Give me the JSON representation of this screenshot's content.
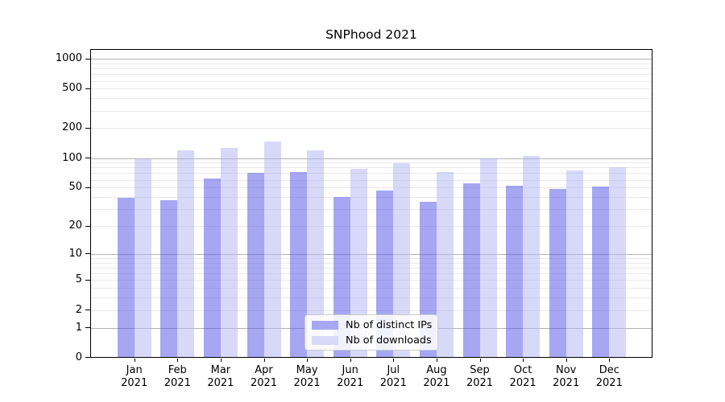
{
  "chart_data": {
    "type": "bar",
    "title": "SNPhood 2021",
    "year_line": "2021",
    "months": [
      "Jan",
      "Feb",
      "Mar",
      "Apr",
      "May",
      "Jun",
      "Jul",
      "Aug",
      "Sep",
      "Oct",
      "Nov",
      "Dec"
    ],
    "series": [
      {
        "name": "Nb of distinct IPs",
        "legend_color": "#a6a6f2",
        "fill": "rgba(77,77,229,0.5)",
        "values": [
          39,
          37,
          62,
          70,
          72,
          40,
          47,
          36,
          55,
          52,
          48,
          51
        ]
      },
      {
        "name": "Nb of downloads",
        "legend_color": "#d8d8f8",
        "fill": "rgba(177,177,241,0.5)",
        "values": [
          97,
          119,
          127,
          146,
          120,
          78,
          89,
          72,
          100,
          104,
          75,
          80
        ]
      }
    ],
    "y_ticks": [
      0,
      1,
      2,
      5,
      10,
      20,
      50,
      100,
      200,
      500,
      1000
    ],
    "y_scale": "log1p",
    "ylim": [
      0,
      1250
    ],
    "grid": {
      "on": true,
      "major": [
        1,
        10,
        100,
        1000
      ],
      "minor_per_decade": [
        2,
        3,
        4,
        5,
        6,
        7,
        8,
        9
      ],
      "major_color": "#b3b3b3",
      "minor_color": "#e9e9e9"
    },
    "legend": {
      "position": "lower-center"
    },
    "axis_color": "#000000",
    "background_color": "#ffffff"
  }
}
